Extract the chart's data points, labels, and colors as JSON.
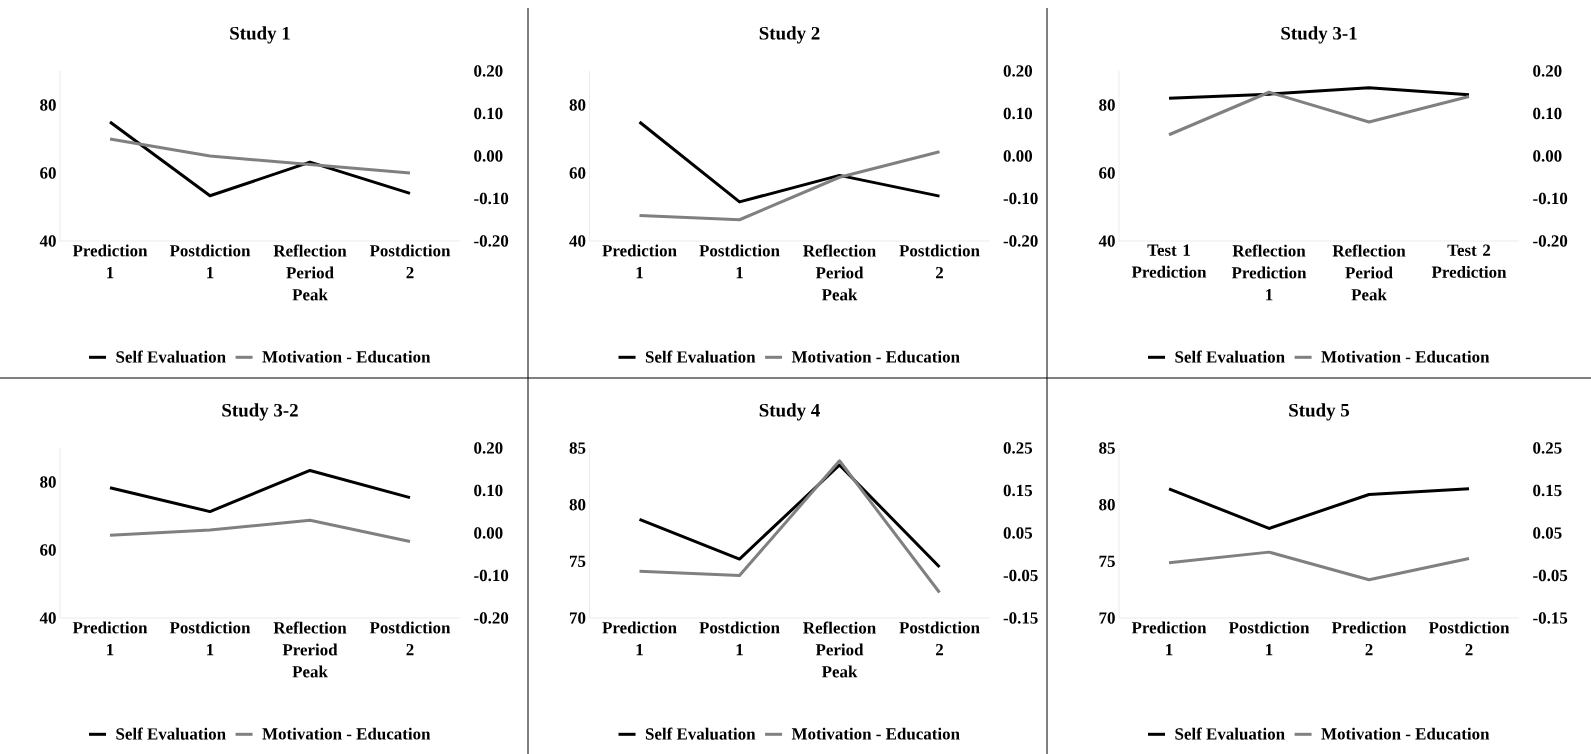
{
  "chart_data": [
    {
      "type": "line",
      "title": "Study 1",
      "categories": [
        "Prediction 1",
        "Postdiction 1",
        "Reflection Period Peak",
        "Postdiction 2"
      ],
      "series": [
        {
          "name": "Self Evaluation",
          "color": "#000000",
          "values": [
            75,
            53.3,
            63.2,
            54
          ]
        },
        {
          "name": "Motivation - Education",
          "color": "#808080",
          "values": [
            0.04,
            0.0,
            -0.02,
            -0.04
          ],
          "axis": "y2"
        }
      ],
      "ylim": [
        40,
        90
      ],
      "yticks": [
        40,
        60,
        80
      ],
      "y2lim": [
        -0.2,
        0.2
      ],
      "y2ticks": [
        {
          "value": -0.2,
          "label": "-0.20"
        },
        {
          "value": -0.1,
          "label": "-0.10"
        },
        {
          "value": 0,
          "label": "0.00"
        },
        {
          "value": 0.1,
          "label": "0.10"
        },
        {
          "value": 0.2,
          "label": "0.20"
        }
      ],
      "legend": "bottom"
    },
    {
      "type": "line",
      "title": "Study 2",
      "categories": [
        "Prediction 1",
        "Postdiction 1",
        "Reflection Period Peak",
        "Postdiction 2"
      ],
      "series": [
        {
          "name": "Self Evaluation",
          "color": "#000000",
          "values": [
            75,
            51.5,
            59.3,
            53.2
          ]
        },
        {
          "name": "Motivation - Education",
          "color": "#808080",
          "values": [
            -0.14,
            -0.15,
            -0.05,
            0.01
          ],
          "axis": "y2"
        }
      ],
      "ylim": [
        40,
        90
      ],
      "yticks": [
        40,
        60,
        80
      ],
      "y2lim": [
        -0.2,
        0.2
      ],
      "y2ticks": [
        {
          "value": -0.2,
          "label": "-0.20"
        },
        {
          "value": -0.1,
          "label": "-0.10"
        },
        {
          "value": 0,
          "label": "0.00"
        },
        {
          "value": 0.1,
          "label": "0.10"
        },
        {
          "value": 0.2,
          "label": "0.20"
        }
      ],
      "legend": "bottom"
    },
    {
      "type": "line",
      "title": "Study 3-1",
      "categories": [
        "Test 1 Prediction",
        "Reflection Prediction 1",
        "Reflection Period Peak",
        "Test 2 Prediction"
      ],
      "series": [
        {
          "name": "Self Evaluation",
          "color": "#000000",
          "values": [
            82,
            83.2,
            85.1,
            83
          ]
        },
        {
          "name": "Motivation - Education",
          "color": "#808080",
          "values": [
            0.05,
            0.15,
            0.08,
            0.14
          ],
          "axis": "y2"
        }
      ],
      "ylim": [
        40,
        90
      ],
      "yticks": [
        40,
        60,
        80
      ],
      "y2lim": [
        -0.2,
        0.2
      ],
      "y2ticks": [
        {
          "value": -0.2,
          "label": "-0.20"
        },
        {
          "value": -0.1,
          "label": "-0.10"
        },
        {
          "value": 0,
          "label": "0.00"
        },
        {
          "value": 0.1,
          "label": "0.10"
        },
        {
          "value": 0.2,
          "label": "0.20"
        }
      ],
      "legend": "bottom"
    },
    {
      "type": "line",
      "title": "Study 3-2",
      "categories": [
        "Prediction 1",
        "Postdiction 1",
        "Reflection Preriod Peak",
        "Postdiction 2"
      ],
      "series": [
        {
          "name": "Self Evaluation",
          "color": "#000000",
          "values": [
            78.3,
            71.3,
            83.4,
            75.4
          ]
        },
        {
          "name": "Motivation - Education",
          "color": "#808080",
          "values": [
            -0.005,
            0.007,
            0.03,
            -0.02
          ],
          "axis": "y2"
        }
      ],
      "ylim": [
        40,
        90
      ],
      "yticks": [
        40,
        60,
        80
      ],
      "y2lim": [
        -0.2,
        0.2
      ],
      "y2ticks": [
        {
          "value": -0.2,
          "label": "-0.20"
        },
        {
          "value": -0.1,
          "label": "-0.10"
        },
        {
          "value": 0,
          "label": "0.00"
        },
        {
          "value": 0.1,
          "label": "0.10"
        },
        {
          "value": 0.2,
          "label": "0.20"
        }
      ],
      "legend": "bottom"
    },
    {
      "type": "line",
      "title": "Study 4",
      "categories": [
        "Prediction 1",
        "Postdiction 1",
        "Reflection Period Peak",
        "Postdiction 2"
      ],
      "series": [
        {
          "name": "Self Evaluation",
          "color": "#000000",
          "values": [
            78.7,
            75.2,
            83.5,
            74.5
          ]
        },
        {
          "name": "Motivation - Education",
          "color": "#808080",
          "values": [
            -0.04,
            -0.05,
            0.22,
            -0.09
          ],
          "axis": "y2"
        }
      ],
      "ylim": [
        70,
        85
      ],
      "yticks": [
        70,
        75,
        80,
        85
      ],
      "y2lim": [
        -0.15,
        0.25
      ],
      "y2ticks": [
        {
          "value": -0.15,
          "label": "-0.15"
        },
        {
          "value": -0.05,
          "label": "-0.05"
        },
        {
          "value": 0.05,
          "label": "0.05"
        },
        {
          "value": 0.15,
          "label": "0.15"
        },
        {
          "value": 0.25,
          "label": "0.25"
        }
      ],
      "legend": "bottom"
    },
    {
      "type": "line",
      "title": "Study 5",
      "categories": [
        "Prediction 1",
        "Postdiction 1",
        "Prediction 2",
        "Postdiction 2"
      ],
      "series": [
        {
          "name": "Self Evaluation",
          "color": "#000000",
          "values": [
            81.4,
            77.9,
            80.9,
            81.4
          ]
        },
        {
          "name": "Motivation - Education",
          "color": "#808080",
          "values": [
            -0.02,
            0.005,
            -0.06,
            -0.01
          ],
          "axis": "y2"
        }
      ],
      "ylim": [
        70,
        85
      ],
      "yticks": [
        70,
        75,
        80,
        85
      ],
      "y2lim": [
        -0.15,
        0.25
      ],
      "y2ticks": [
        {
          "value": -0.15,
          "label": "-0.15"
        },
        {
          "value": -0.05,
          "label": "-0.05"
        },
        {
          "value": 0.05,
          "label": "0.05"
        },
        {
          "value": 0.15,
          "label": "0.15"
        },
        {
          "value": 0.25,
          "label": "0.25"
        }
      ],
      "legend": "bottom"
    }
  ]
}
